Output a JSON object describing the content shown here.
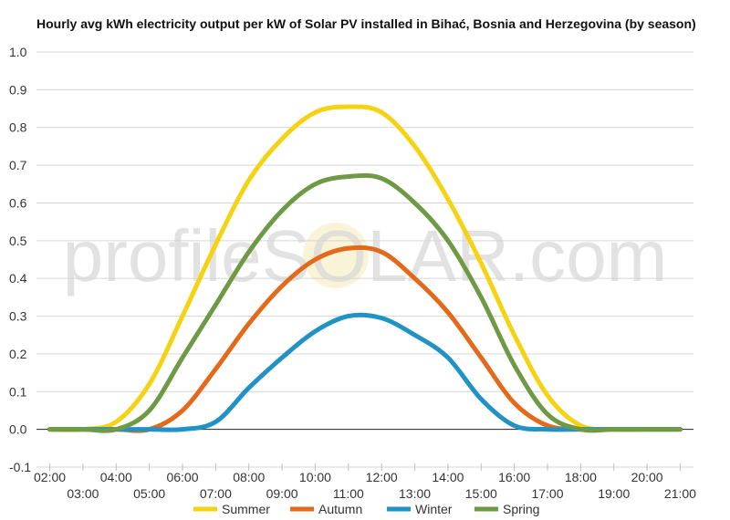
{
  "chart_data": {
    "type": "line",
    "title": "Hourly avg kWh electricity output per kW of Solar PV installed in Bihać, Bosnia and Herzegovina (by season)",
    "xlabel": "",
    "ylabel": "",
    "ylim": [
      -0.1,
      1.0
    ],
    "yticks": [
      "1.0",
      "0.9",
      "0.8",
      "0.7",
      "0.6",
      "0.5",
      "0.4",
      "0.3",
      "0.2",
      "0.1",
      "0.0",
      "-0.1"
    ],
    "xticks": [
      "02:00",
      "03:00",
      "04:00",
      "05:00",
      "06:00",
      "07:00",
      "08:00",
      "09:00",
      "10:00",
      "11:00",
      "12:00",
      "13:00",
      "14:00",
      "15:00",
      "16:00",
      "17:00",
      "18:00",
      "19:00",
      "20:00",
      "21:00"
    ],
    "x": [
      2,
      3,
      4,
      5,
      6,
      7,
      8,
      9,
      10,
      11,
      12,
      13,
      14,
      15,
      16,
      17,
      18,
      19,
      20,
      21
    ],
    "grid": true,
    "legend_position": "bottom",
    "series": [
      {
        "name": "Summer",
        "color": "#f5d312",
        "values": [
          0.0,
          0.0,
          0.02,
          0.12,
          0.3,
          0.49,
          0.66,
          0.77,
          0.84,
          0.855,
          0.84,
          0.75,
          0.61,
          0.44,
          0.25,
          0.09,
          0.01,
          0.0,
          0.0,
          0.0
        ]
      },
      {
        "name": "Autumn",
        "color": "#e26a1a",
        "values": [
          0.0,
          0.0,
          0.0,
          0.0,
          0.05,
          0.16,
          0.28,
          0.38,
          0.45,
          0.48,
          0.47,
          0.4,
          0.31,
          0.19,
          0.07,
          0.01,
          0.0,
          0.0,
          0.0,
          0.0
        ]
      },
      {
        "name": "Winter",
        "color": "#2192c6",
        "values": [
          0.0,
          0.0,
          0.0,
          0.0,
          0.0,
          0.02,
          0.11,
          0.19,
          0.26,
          0.3,
          0.295,
          0.25,
          0.19,
          0.08,
          0.01,
          0.0,
          0.0,
          0.0,
          0.0,
          0.0
        ]
      },
      {
        "name": "Spring",
        "color": "#6f9a45",
        "values": [
          0.0,
          0.0,
          0.0,
          0.05,
          0.19,
          0.33,
          0.47,
          0.58,
          0.65,
          0.67,
          0.665,
          0.6,
          0.5,
          0.35,
          0.17,
          0.04,
          0.0,
          0.0,
          0.0,
          0.0
        ]
      }
    ],
    "watermark": "profileSOLAR.com"
  }
}
